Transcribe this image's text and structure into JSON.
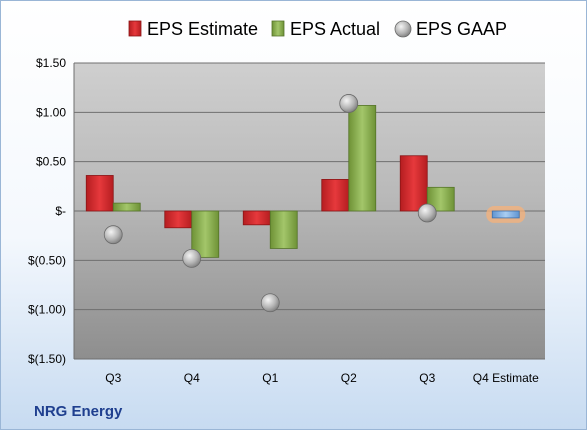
{
  "company": "NRG Energy",
  "colors": {
    "estimate": "#d6262a",
    "actual": "#8cb14b",
    "gaap": "#b8b8b8",
    "forecast": "#8ab6e6",
    "forecast_glow": "#f7b27a"
  },
  "chart_data": {
    "type": "bar",
    "title": "",
    "xlabel": "",
    "ylabel": "",
    "ylim": [
      -1.5,
      1.5
    ],
    "yticks": [
      1.5,
      1.0,
      0.5,
      0,
      -0.5,
      -1.0,
      -1.5
    ],
    "ytick_labels": [
      "$1.50",
      "$1.00",
      "$0.50",
      "$-",
      "$(0.50)",
      "$(1.00)",
      "$(1.50)"
    ],
    "categories": [
      "Q3",
      "Q4",
      "Q1",
      "Q2",
      "Q3",
      "Q4 Estimate"
    ],
    "legend": {
      "position": "top",
      "entries": [
        "EPS Estimate",
        "EPS Actual",
        "EPS GAAP"
      ]
    },
    "grid": true,
    "series": [
      {
        "name": "EPS Estimate",
        "kind": "bar",
        "values": [
          0.36,
          -0.17,
          -0.14,
          0.32,
          0.56,
          null
        ]
      },
      {
        "name": "EPS Actual",
        "kind": "bar",
        "values": [
          0.08,
          -0.47,
          -0.38,
          1.07,
          0.24,
          null
        ]
      },
      {
        "name": "EPS GAAP",
        "kind": "point",
        "values": [
          -0.24,
          -0.48,
          -0.93,
          1.09,
          -0.02,
          null
        ]
      }
    ],
    "forecast": {
      "category": "Q4 Estimate",
      "value": -0.07
    }
  }
}
